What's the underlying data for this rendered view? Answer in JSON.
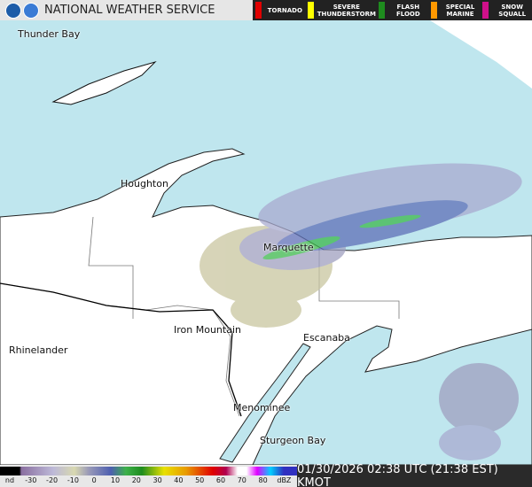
{
  "header": {
    "title": "NATIONAL WEATHER SERVICE"
  },
  "warnings": [
    {
      "label": "TORNADO"
    },
    {
      "label": "SEVERE THUNDERSTORM"
    },
    {
      "label": "FLASH FLOOD"
    },
    {
      "label": "SPECIAL MARINE"
    },
    {
      "label": "SNOW SQUALL"
    }
  ],
  "cities": [
    "Thunder Bay",
    "Houghton",
    "Marquette",
    "Iron Mountain",
    "Rhinelander",
    "Escanaba",
    "Menominee",
    "Sturgeon Bay"
  ],
  "color_scale": {
    "labels": [
      "nd",
      -30,
      -20,
      -10,
      0,
      10,
      20,
      30,
      40,
      50,
      60,
      70,
      80,
      "dBZ"
    ]
  },
  "footer": {
    "timestamp": "01/30/2026 02:38 UTC (21:38 EST) KMOT"
  }
}
